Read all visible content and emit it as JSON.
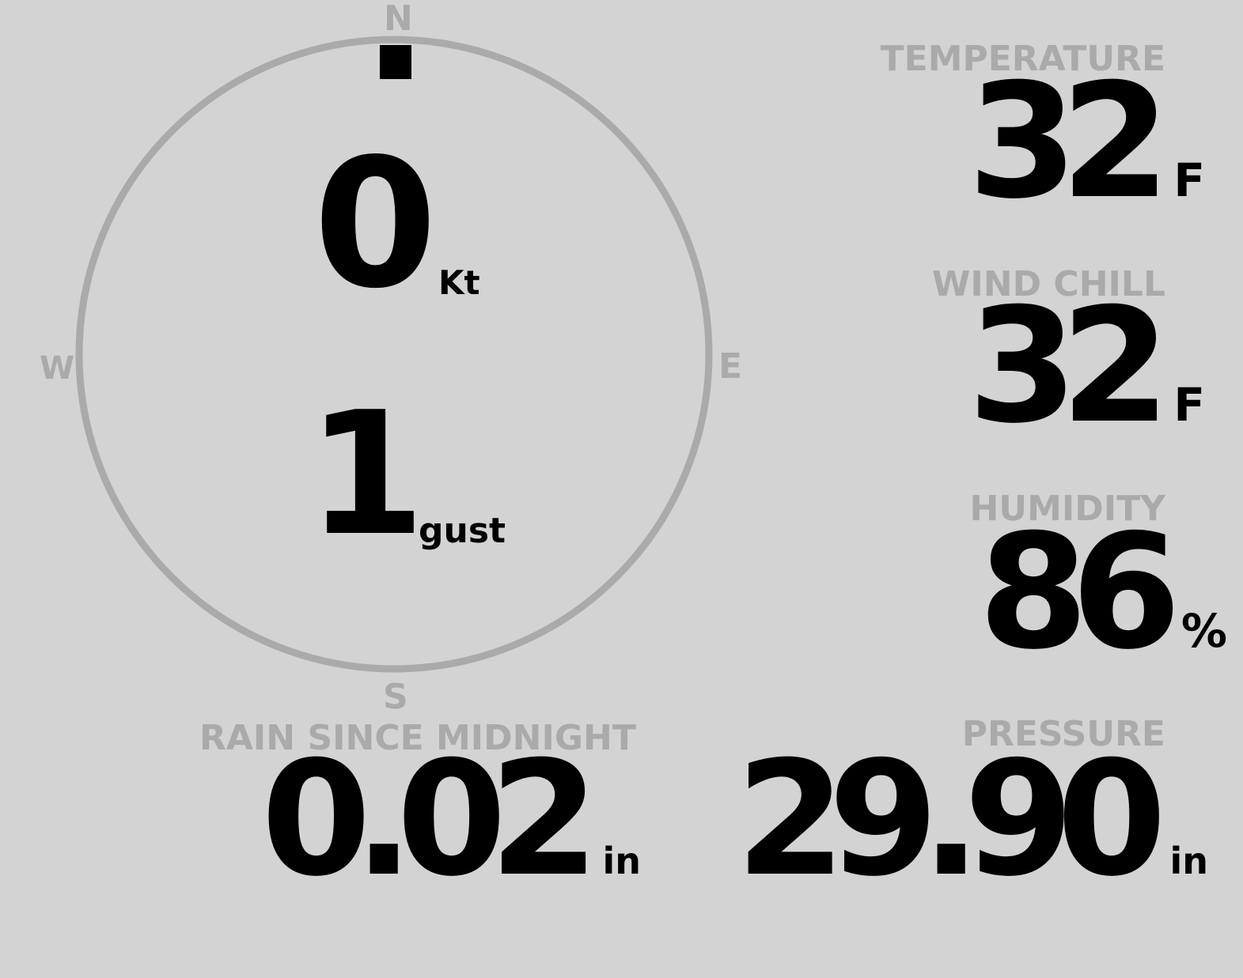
{
  "compass": {
    "north": "N",
    "south": "S",
    "east": "E",
    "west": "W",
    "wind_direction_deg": 0,
    "wind_speed": "0",
    "wind_speed_unit": "Kt",
    "gust": "1",
    "gust_unit": "gust"
  },
  "temperature": {
    "label": "TEMPERATURE",
    "value": "32",
    "unit": "F"
  },
  "wind_chill": {
    "label": "WIND CHILL",
    "value": "32",
    "unit": "F"
  },
  "humidity": {
    "label": "HUMIDITY",
    "value": "86",
    "unit": "%"
  },
  "rain": {
    "label": "RAIN SINCE MIDNIGHT",
    "value": "0.02",
    "unit": "in"
  },
  "pressure": {
    "label": "PRESSURE",
    "value": "29.90",
    "unit": "in"
  },
  "colors": {
    "background": "#d3d3d3",
    "muted": "#aaaaaa",
    "text": "#000000"
  }
}
